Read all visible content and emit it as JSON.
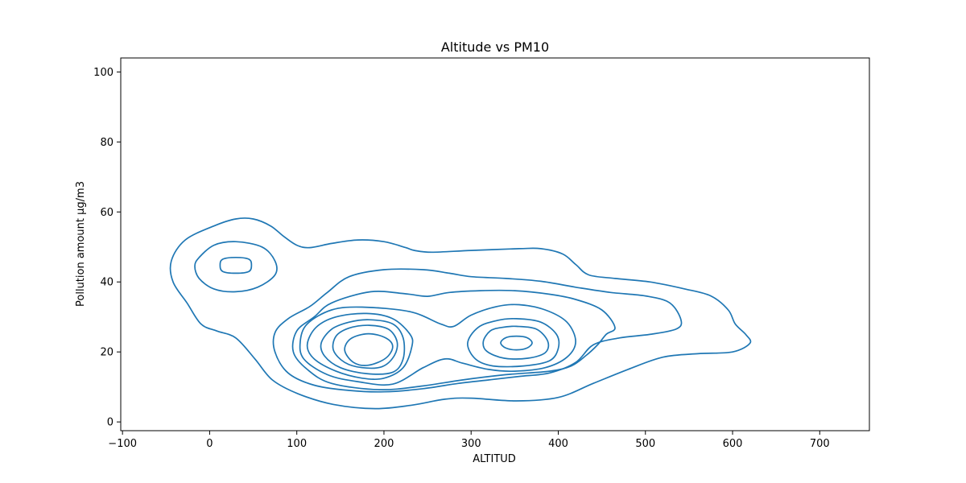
{
  "chart_data": {
    "type": "contour",
    "title": "Altitude vs PM10",
    "xlabel": "ALTITUD",
    "ylabel": "Pollution amount µg/m3",
    "xlim": [
      -102,
      757
    ],
    "ylim": [
      -2.5,
      104
    ],
    "xticks": [
      -100,
      0,
      100,
      200,
      300,
      400,
      500,
      600,
      700
    ],
    "yticks": [
      0,
      20,
      40,
      60,
      80,
      100
    ],
    "grid": false,
    "line_color": "#1f77b4",
    "contours": [
      {
        "level": 1,
        "points": [
          [
            30,
            58
          ],
          [
            5,
            56
          ],
          [
            -28,
            52
          ],
          [
            -44,
            46
          ],
          [
            -42,
            40
          ],
          [
            -26,
            34
          ],
          [
            -10,
            28
          ],
          [
            8,
            26
          ],
          [
            30,
            24
          ],
          [
            52,
            18
          ],
          [
            72,
            12
          ],
          [
            102,
            8
          ],
          [
            142,
            5
          ],
          [
            190,
            3.8
          ],
          [
            232,
            4.8
          ],
          [
            270,
            6.5
          ],
          [
            300,
            6.8
          ],
          [
            352,
            6
          ],
          [
            400,
            7
          ],
          [
            440,
            11
          ],
          [
            480,
            15
          ],
          [
            520,
            18.5
          ],
          [
            560,
            19.5
          ],
          [
            600,
            20
          ],
          [
            620,
            22.5
          ],
          [
            615,
            25
          ],
          [
            603,
            28
          ],
          [
            595,
            32
          ],
          [
            575,
            36
          ],
          [
            545,
            38
          ],
          [
            505,
            40
          ],
          [
            465,
            41
          ],
          [
            435,
            42
          ],
          [
            420,
            45
          ],
          [
            405,
            48
          ],
          [
            380,
            49.5
          ],
          [
            355,
            49.5
          ],
          [
            300,
            49
          ],
          [
            255,
            48.5
          ],
          [
            235,
            49
          ],
          [
            225,
            49.8
          ],
          [
            200,
            51.5
          ],
          [
            170,
            52
          ],
          [
            140,
            51
          ],
          [
            115,
            49.8
          ],
          [
            100,
            50.5
          ],
          [
            85,
            53
          ],
          [
            70,
            56
          ],
          [
            50,
            58
          ],
          [
            30,
            58
          ]
        ]
      },
      {
        "level": 2,
        "points": [
          [
            30,
            51.5
          ],
          [
            5,
            50.5
          ],
          [
            -12,
            47
          ],
          [
            -17,
            44.5
          ],
          [
            -12,
            41
          ],
          [
            5,
            38
          ],
          [
            30,
            37.2
          ],
          [
            55,
            38.5
          ],
          [
            75,
            42
          ],
          [
            75,
            46
          ],
          [
            60,
            50
          ],
          [
            30,
            51.5
          ]
        ]
      },
      {
        "level": 3,
        "points": [
          [
            30,
            47
          ],
          [
            15,
            46.5
          ],
          [
            12,
            44.8
          ],
          [
            15,
            43
          ],
          [
            30,
            42.5
          ],
          [
            45,
            43
          ],
          [
            48,
            44.8
          ],
          [
            45,
            46.5
          ],
          [
            30,
            47
          ]
        ]
      },
      {
        "level": 2,
        "points": [
          [
            200,
            43.5
          ],
          [
            245,
            43.5
          ],
          [
            275,
            42.5
          ],
          [
            300,
            41.5
          ],
          [
            340,
            41
          ],
          [
            380,
            40.2
          ],
          [
            420,
            38.5
          ],
          [
            460,
            37
          ],
          [
            500,
            36
          ],
          [
            528,
            34
          ],
          [
            541,
            29
          ],
          [
            535,
            26.5
          ],
          [
            505,
            25
          ],
          [
            470,
            24
          ],
          [
            440,
            22
          ],
          [
            420,
            17
          ],
          [
            390,
            14
          ],
          [
            355,
            13
          ],
          [
            320,
            12
          ],
          [
            285,
            11
          ],
          [
            245,
            9.5
          ],
          [
            200,
            8.6
          ],
          [
            160,
            9
          ],
          [
            120,
            10.5
          ],
          [
            90,
            14
          ],
          [
            75,
            20
          ],
          [
            75,
            25.5
          ],
          [
            90,
            29.5
          ],
          [
            115,
            33
          ],
          [
            135,
            37
          ],
          [
            160,
            41.5
          ],
          [
            200,
            43.5
          ]
        ]
      },
      {
        "level": 3,
        "points": [
          [
            185,
            37.2
          ],
          [
            225,
            36.6
          ],
          [
            250,
            35.9
          ],
          [
            275,
            37
          ],
          [
            310,
            37.5
          ],
          [
            350,
            37.5
          ],
          [
            390,
            36.5
          ],
          [
            420,
            35
          ],
          [
            450,
            32
          ],
          [
            465,
            27
          ],
          [
            455,
            25
          ],
          [
            445,
            22
          ],
          [
            432,
            19
          ],
          [
            415,
            16
          ],
          [
            390,
            14.5
          ],
          [
            340,
            13.5
          ],
          [
            290,
            12
          ],
          [
            245,
            10.3
          ],
          [
            195,
            9.2
          ],
          [
            140,
            11
          ],
          [
            112,
            15
          ],
          [
            96,
            20
          ],
          [
            100,
            26
          ],
          [
            120,
            30
          ],
          [
            140,
            34
          ],
          [
            185,
            37.2
          ]
        ]
      },
      {
        "level": 4,
        "points": [
          [
            175,
            32.8
          ],
          [
            230,
            31.5
          ],
          [
            265,
            28
          ],
          [
            280,
            27.3
          ],
          [
            300,
            30.5
          ],
          [
            330,
            33
          ],
          [
            355,
            33.5
          ],
          [
            385,
            32
          ],
          [
            410,
            28.5
          ],
          [
            420,
            23
          ],
          [
            410,
            18.5
          ],
          [
            385,
            15.5
          ],
          [
            350,
            14.5
          ],
          [
            320,
            15
          ],
          [
            290,
            16.8
          ],
          [
            270,
            18
          ],
          [
            245,
            15.5
          ],
          [
            210,
            10.8
          ],
          [
            170,
            11.5
          ],
          [
            135,
            13.5
          ],
          [
            108,
            18
          ],
          [
            104,
            23
          ],
          [
            112,
            28
          ],
          [
            140,
            32
          ],
          [
            175,
            32.8
          ]
        ]
      },
      {
        "level": 5,
        "points": [
          [
            180,
            31
          ],
          [
            210,
            29.5
          ],
          [
            230,
            25
          ],
          [
            232,
            21.5
          ],
          [
            222,
            15.5
          ],
          [
            200,
            12.5
          ],
          [
            175,
            12.5
          ],
          [
            145,
            14.5
          ],
          [
            120,
            18
          ],
          [
            112,
            22
          ],
          [
            122,
            27
          ],
          [
            145,
            30
          ],
          [
            180,
            31
          ]
        ]
      },
      {
        "level": 5,
        "points": [
          [
            352,
            29.5
          ],
          [
            380,
            28.5
          ],
          [
            398,
            25
          ],
          [
            400,
            21
          ],
          [
            390,
            17.5
          ],
          [
            360,
            16
          ],
          [
            325,
            16
          ],
          [
            305,
            18
          ],
          [
            296,
            22.5
          ],
          [
            308,
            27
          ],
          [
            330,
            29
          ],
          [
            352,
            29.5
          ]
        ]
      },
      {
        "level": 6,
        "points": [
          [
            183,
            29.2
          ],
          [
            210,
            28
          ],
          [
            222,
            24
          ],
          [
            222,
            18
          ],
          [
            210,
            14.2
          ],
          [
            180,
            13.8
          ],
          [
            150,
            15.5
          ],
          [
            132,
            18.8
          ],
          [
            128,
            22.5
          ],
          [
            140,
            26.5
          ],
          [
            160,
            28.5
          ],
          [
            183,
            29.2
          ]
        ]
      },
      {
        "level": 6,
        "points": [
          [
            352,
            27.3
          ],
          [
            375,
            26.5
          ],
          [
            388,
            23
          ],
          [
            385,
            19.8
          ],
          [
            365,
            18.2
          ],
          [
            338,
            18.2
          ],
          [
            318,
            20.2
          ],
          [
            314,
            23
          ],
          [
            322,
            26
          ],
          [
            335,
            27
          ],
          [
            352,
            27.3
          ]
        ]
      },
      {
        "level": 7,
        "points": [
          [
            183,
            27.6
          ],
          [
            205,
            26.5
          ],
          [
            215,
            23
          ],
          [
            212,
            19
          ],
          [
            198,
            15.8
          ],
          [
            175,
            15.5
          ],
          [
            155,
            17
          ],
          [
            142,
            20.5
          ],
          [
            145,
            24.5
          ],
          [
            160,
            26.8
          ],
          [
            183,
            27.6
          ]
        ]
      },
      {
        "level": 7,
        "points": [
          [
            352,
            24.5
          ],
          [
            364,
            24.1
          ],
          [
            370,
            22.6
          ],
          [
            364,
            21.1
          ],
          [
            352,
            20.6
          ],
          [
            340,
            21.1
          ],
          [
            334,
            22.6
          ],
          [
            340,
            24.1
          ],
          [
            352,
            24.5
          ]
        ]
      },
      {
        "level": 8,
        "points": [
          [
            182,
            25.2
          ],
          [
            202,
            24
          ],
          [
            210,
            21.5
          ],
          [
            202,
            18.2
          ],
          [
            182,
            16.2
          ],
          [
            165,
            17
          ],
          [
            155,
            20.5
          ],
          [
            162,
            23.8
          ],
          [
            182,
            25.2
          ]
        ]
      }
    ]
  }
}
